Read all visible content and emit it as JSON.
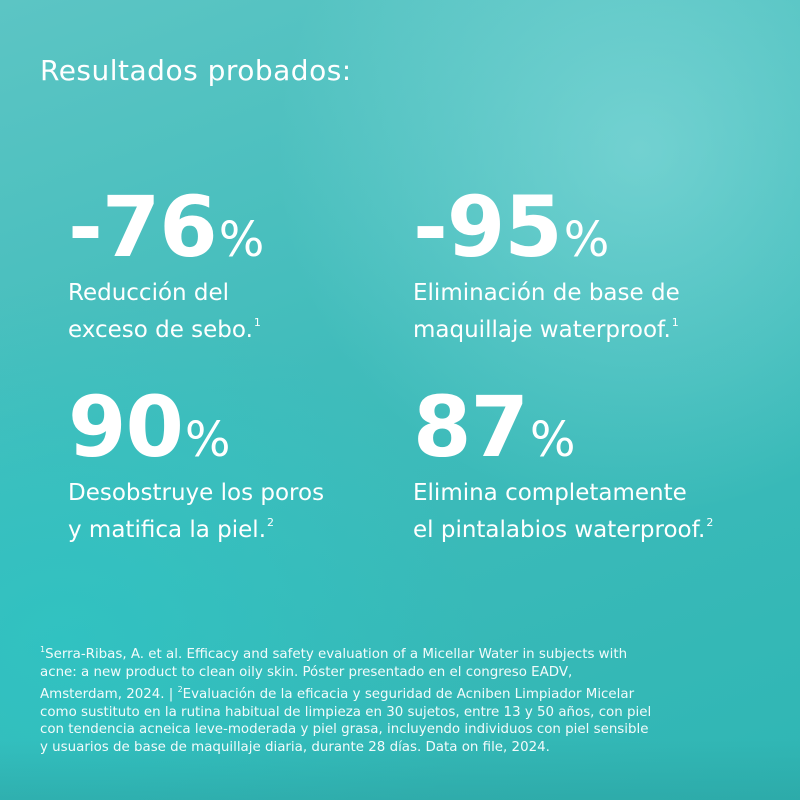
{
  "title": "Resultados probados:",
  "stats": [
    {
      "value": "-76",
      "unit": "%",
      "line1": "Reducción del",
      "line2": "exceso de sebo.",
      "ref": "1"
    },
    {
      "value": "-95",
      "unit": "%",
      "line1": "Eliminación de base de",
      "line2": "maquillaje waterproof.",
      "ref": "1"
    },
    {
      "value": "90",
      "unit": "%",
      "line1": "Desobstruye los poros",
      "line2": "y matifica la piel.",
      "ref": "2"
    },
    {
      "value": "87",
      "unit": "%",
      "line1": "Elimina completamente",
      "line2": "el pintalabios waterproof.",
      "ref": "2"
    }
  ],
  "footnote": {
    "ref1": "1",
    "ref2": "2",
    "lines": [
      "Serra-Ribas, A. et al. Efficacy and safety evaluation of a Micellar Water in subjects with",
      "acne: a new product to clean oily skin. Póster presentado en el congreso EADV,",
      "Amsterdam, 2024. | ",
      "Evaluación de la eficacia y seguridad de Acniben Limpiador Micelar",
      "como sustituto en la rutina habitual de limpieza en 30 sujetos, entre 13 y 50 años, con piel",
      "con tendencia acneica leve-moderada y piel grasa, incluyendo individuos con piel sensible",
      "y usuarios de base de maquillaje diaria, durante 28 días. Data on file, 2024."
    ]
  },
  "colors": {
    "background": "#40bcbb",
    "text": "#ffffff"
  }
}
